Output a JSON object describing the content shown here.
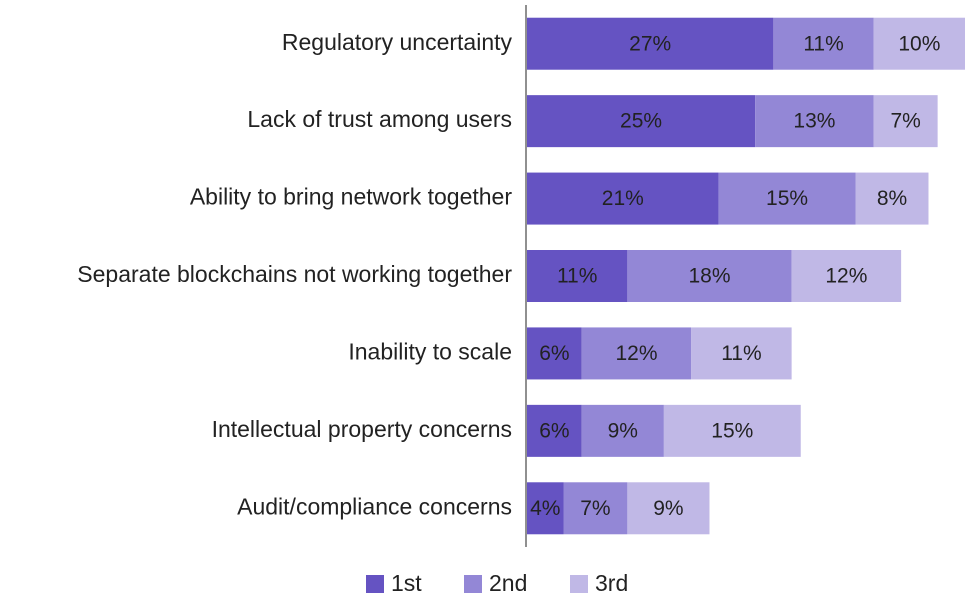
{
  "chart_data": {
    "type": "bar",
    "orientation": "horizontal",
    "stacked": true,
    "legend": "bottom",
    "categories": [
      "Regulatory uncertainty",
      "Lack of trust among users",
      "Ability to bring network together",
      "Separate blockchains not working together",
      "Inability to scale",
      "Intellectual property concerns",
      "Audit/compliance concerns"
    ],
    "series": [
      {
        "name": "1st",
        "color": "#6553c2",
        "values": [
          27,
          25,
          21,
          11,
          6,
          6,
          4
        ],
        "value_labels": [
          "27%",
          "25%",
          "21%",
          "11%",
          "6%",
          "6%",
          "4%"
        ]
      },
      {
        "name": "2nd",
        "color": "#9387d6",
        "values": [
          11,
          13,
          15,
          18,
          12,
          9,
          7
        ],
        "value_labels": [
          "11%",
          "13%",
          "15%",
          "18%",
          "12%",
          "9%",
          "7%"
        ]
      },
      {
        "name": "3rd",
        "color": "#c0b8e6",
        "values": [
          10,
          7,
          8,
          12,
          11,
          15,
          9
        ],
        "value_labels": [
          "10%",
          "7%",
          "8%",
          "12%",
          "11%",
          "15%",
          "9%"
        ]
      }
    ]
  }
}
